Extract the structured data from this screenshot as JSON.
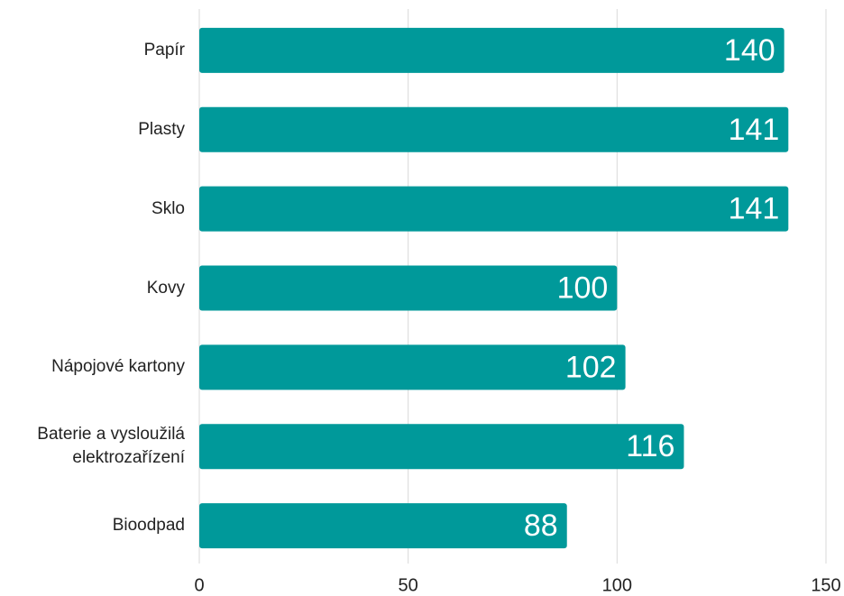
{
  "chart_data": {
    "type": "bar",
    "orientation": "horizontal",
    "categories": [
      "Papír",
      "Plasty",
      "Sklo",
      "Kovy",
      "Nápojové kartony",
      "Baterie a vysloužilá elektrozařízení",
      "Bioodpad"
    ],
    "values": [
      140,
      141,
      141,
      100,
      102,
      116,
      88
    ],
    "color": "#00999a",
    "xlim": [
      0,
      150
    ],
    "xticks": [
      0,
      50,
      100,
      150
    ],
    "grid": true
  }
}
